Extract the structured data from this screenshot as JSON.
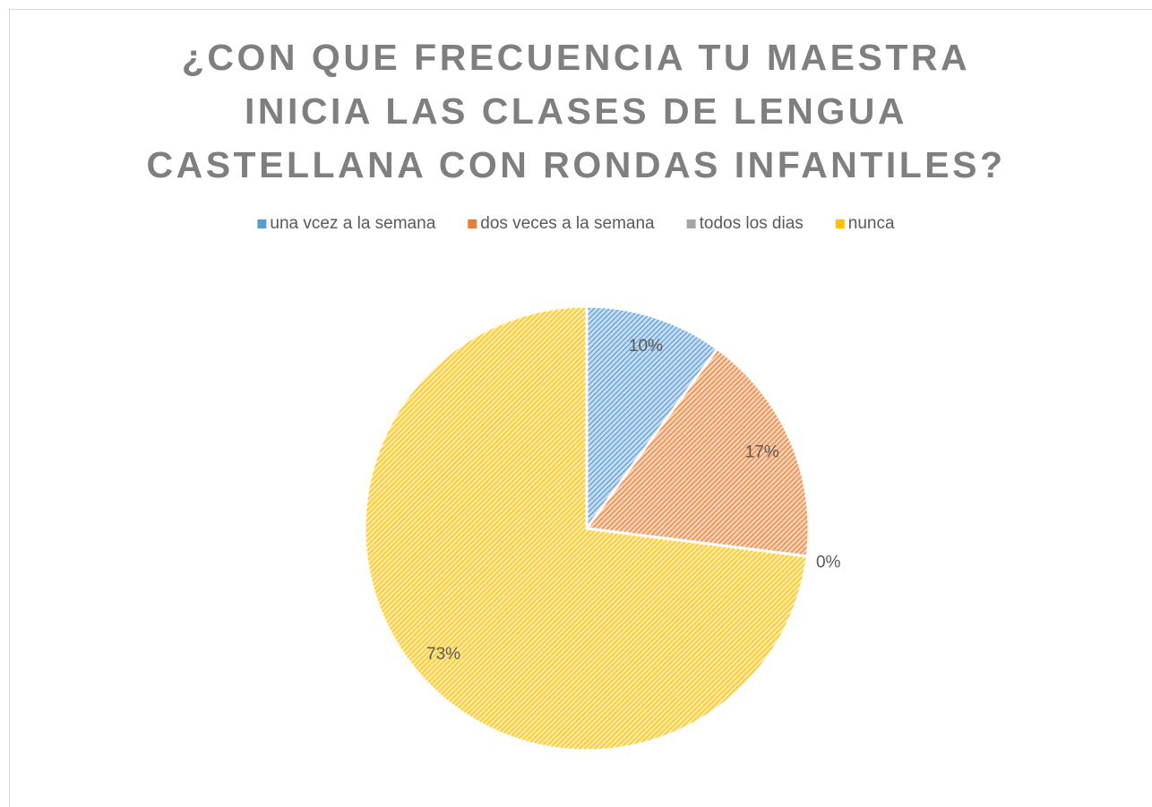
{
  "chart_data": {
    "type": "pie",
    "title": "¿CON QUE FRECUENCIA TU MAESTRA INICIA LAS CLASES DE LENGUA CASTELLANA CON RONDAS INFANTILES?",
    "categories": [
      "una vcez a la semana",
      "dos veces a la semana",
      "todos los dias",
      "nunca"
    ],
    "values": [
      10,
      17,
      0,
      73
    ],
    "value_labels": [
      "10%",
      "17%",
      "0%",
      "73%"
    ],
    "colors": [
      "#5b9bd5",
      "#ed7d31",
      "#a5a5a5",
      "#ffc000"
    ],
    "legend": "top"
  }
}
